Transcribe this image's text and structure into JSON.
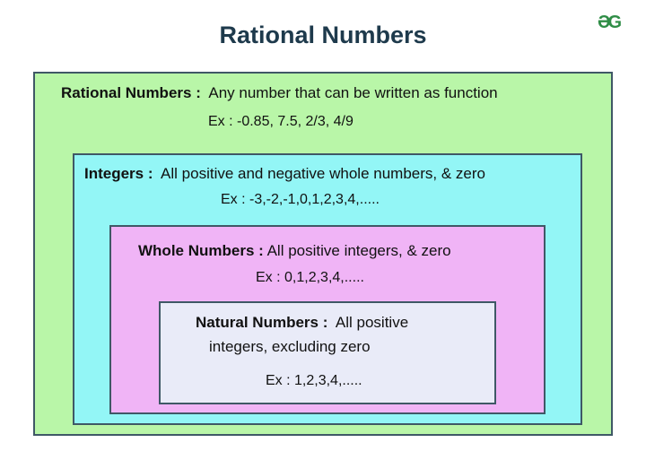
{
  "title": "Rational Numbers",
  "logo": "GfG",
  "colors": {
    "rational": "#b9f6a8",
    "integers": "#93f6f6",
    "whole": "#f0b4f6",
    "natural": "#e9ebf8",
    "border": "#3f5866",
    "title": "#1e3a4c"
  },
  "sets": {
    "rational": {
      "label": "Rational Numbers :",
      "description": "Any number that can be written as function",
      "example": "Ex : -0.85, 7.5, 2/3, 4/9"
    },
    "integers": {
      "label": "Integers :",
      "description": "All positive and negative whole numbers, & zero",
      "example": "Ex : -3,-2,-1,0,1,2,3,4,....."
    },
    "whole": {
      "label": "Whole Numbers :",
      "description": "All positive integers, & zero",
      "example": "Ex : 0,1,2,3,4,....."
    },
    "natural": {
      "label": "Natural Numbers :",
      "description": "All positive",
      "description_2": "integers, excluding zero",
      "example": "Ex : 1,2,3,4,....."
    }
  }
}
